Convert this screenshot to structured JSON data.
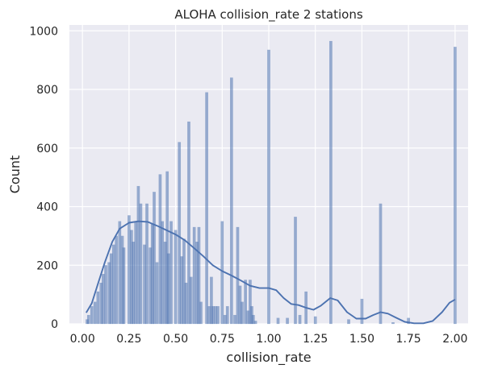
{
  "chart_data": {
    "type": "bar",
    "title": "ALOHA collision_rate 2 stations",
    "xlabel": "collision_rate",
    "ylabel": "Count",
    "xlim": [
      -0.07,
      2.07
    ],
    "ylim": [
      0,
      1020
    ],
    "xticks": [
      "0.00",
      "0.25",
      "0.50",
      "0.75",
      "1.00",
      "1.25",
      "1.50",
      "1.75",
      "2.00"
    ],
    "yticks": [
      "0",
      "200",
      "400",
      "600",
      "800",
      "1000"
    ],
    "grid": true,
    "bar_color": "#4c72b0",
    "kde_color": "#4c72b0",
    "background_color": "#eaeaf2",
    "bins": [
      {
        "x": 0.025,
        "count": 15
      },
      {
        "x": 0.033,
        "count": 30
      },
      {
        "x": 0.05,
        "count": 60
      },
      {
        "x": 0.067,
        "count": 75
      },
      {
        "x": 0.083,
        "count": 110
      },
      {
        "x": 0.1,
        "count": 140
      },
      {
        "x": 0.111,
        "count": 170
      },
      {
        "x": 0.125,
        "count": 200
      },
      {
        "x": 0.143,
        "count": 210
      },
      {
        "x": 0.154,
        "count": 240
      },
      {
        "x": 0.167,
        "count": 270
      },
      {
        "x": 0.182,
        "count": 300
      },
      {
        "x": 0.2,
        "count": 350
      },
      {
        "x": 0.214,
        "count": 300
      },
      {
        "x": 0.222,
        "count": 260
      },
      {
        "x": 0.25,
        "count": 370
      },
      {
        "x": 0.263,
        "count": 320
      },
      {
        "x": 0.273,
        "count": 280
      },
      {
        "x": 0.286,
        "count": 350
      },
      {
        "x": 0.3,
        "count": 470
      },
      {
        "x": 0.313,
        "count": 410
      },
      {
        "x": 0.333,
        "count": 270
      },
      {
        "x": 0.346,
        "count": 410
      },
      {
        "x": 0.364,
        "count": 260
      },
      {
        "x": 0.375,
        "count": 340
      },
      {
        "x": 0.385,
        "count": 450
      },
      {
        "x": 0.4,
        "count": 210
      },
      {
        "x": 0.417,
        "count": 510
      },
      {
        "x": 0.429,
        "count": 350
      },
      {
        "x": 0.444,
        "count": 280
      },
      {
        "x": 0.455,
        "count": 520
      },
      {
        "x": 0.462,
        "count": 240
      },
      {
        "x": 0.476,
        "count": 350
      },
      {
        "x": 0.5,
        "count": 320
      },
      {
        "x": 0.52,
        "count": 620
      },
      {
        "x": 0.533,
        "count": 230
      },
      {
        "x": 0.545,
        "count": 290
      },
      {
        "x": 0.556,
        "count": 140
      },
      {
        "x": 0.571,
        "count": 690
      },
      {
        "x": 0.583,
        "count": 160
      },
      {
        "x": 0.6,
        "count": 330
      },
      {
        "x": 0.615,
        "count": 280
      },
      {
        "x": 0.625,
        "count": 330
      },
      {
        "x": 0.636,
        "count": 75
      },
      {
        "x": 0.667,
        "count": 790
      },
      {
        "x": 0.68,
        "count": 60
      },
      {
        "x": 0.692,
        "count": 160
      },
      {
        "x": 0.7,
        "count": 60
      },
      {
        "x": 0.714,
        "count": 60
      },
      {
        "x": 0.727,
        "count": 60
      },
      {
        "x": 0.75,
        "count": 350
      },
      {
        "x": 0.765,
        "count": 30
      },
      {
        "x": 0.778,
        "count": 60
      },
      {
        "x": 0.8,
        "count": 840
      },
      {
        "x": 0.818,
        "count": 30
      },
      {
        "x": 0.833,
        "count": 330
      },
      {
        "x": 0.846,
        "count": 130
      },
      {
        "x": 0.857,
        "count": 75
      },
      {
        "x": 0.875,
        "count": 150
      },
      {
        "x": 0.889,
        "count": 45
      },
      {
        "x": 0.9,
        "count": 150
      },
      {
        "x": 0.909,
        "count": 60
      },
      {
        "x": 0.917,
        "count": 30
      },
      {
        "x": 0.929,
        "count": 10
      },
      {
        "x": 1.0,
        "count": 935
      },
      {
        "x": 1.05,
        "count": 20
      },
      {
        "x": 1.1,
        "count": 20
      },
      {
        "x": 1.143,
        "count": 365
      },
      {
        "x": 1.167,
        "count": 30
      },
      {
        "x": 1.2,
        "count": 110
      },
      {
        "x": 1.25,
        "count": 25
      },
      {
        "x": 1.333,
        "count": 965
      },
      {
        "x": 1.429,
        "count": 15
      },
      {
        "x": 1.5,
        "count": 85
      },
      {
        "x": 1.6,
        "count": 410
      },
      {
        "x": 1.667,
        "count": 5
      },
      {
        "x": 1.75,
        "count": 20
      },
      {
        "x": 2.0,
        "count": 945
      }
    ],
    "kde": [
      {
        "x": 0.02,
        "y": 38
      },
      {
        "x": 0.05,
        "y": 70
      },
      {
        "x": 0.08,
        "y": 130
      },
      {
        "x": 0.12,
        "y": 210
      },
      {
        "x": 0.16,
        "y": 280
      },
      {
        "x": 0.2,
        "y": 325
      },
      {
        "x": 0.25,
        "y": 345
      },
      {
        "x": 0.3,
        "y": 350
      },
      {
        "x": 0.35,
        "y": 348
      },
      {
        "x": 0.4,
        "y": 335
      },
      {
        "x": 0.45,
        "y": 320
      },
      {
        "x": 0.5,
        "y": 305
      },
      {
        "x": 0.55,
        "y": 285
      },
      {
        "x": 0.6,
        "y": 258
      },
      {
        "x": 0.65,
        "y": 230
      },
      {
        "x": 0.7,
        "y": 200
      },
      {
        "x": 0.75,
        "y": 180
      },
      {
        "x": 0.8,
        "y": 165
      },
      {
        "x": 0.85,
        "y": 148
      },
      {
        "x": 0.9,
        "y": 130
      },
      {
        "x": 0.95,
        "y": 122
      },
      {
        "x": 1.0,
        "y": 122
      },
      {
        "x": 1.04,
        "y": 115
      },
      {
        "x": 1.08,
        "y": 88
      },
      {
        "x": 1.12,
        "y": 68
      },
      {
        "x": 1.16,
        "y": 64
      },
      {
        "x": 1.2,
        "y": 55
      },
      {
        "x": 1.24,
        "y": 48
      },
      {
        "x": 1.28,
        "y": 62
      },
      {
        "x": 1.33,
        "y": 88
      },
      {
        "x": 1.37,
        "y": 80
      },
      {
        "x": 1.42,
        "y": 40
      },
      {
        "x": 1.47,
        "y": 18
      },
      {
        "x": 1.52,
        "y": 18
      },
      {
        "x": 1.56,
        "y": 30
      },
      {
        "x": 1.6,
        "y": 40
      },
      {
        "x": 1.64,
        "y": 35
      },
      {
        "x": 1.68,
        "y": 22
      },
      {
        "x": 1.73,
        "y": 7
      },
      {
        "x": 1.78,
        "y": 2
      },
      {
        "x": 1.83,
        "y": 2
      },
      {
        "x": 1.88,
        "y": 10
      },
      {
        "x": 1.93,
        "y": 40
      },
      {
        "x": 1.97,
        "y": 72
      },
      {
        "x": 2.0,
        "y": 83
      }
    ]
  }
}
